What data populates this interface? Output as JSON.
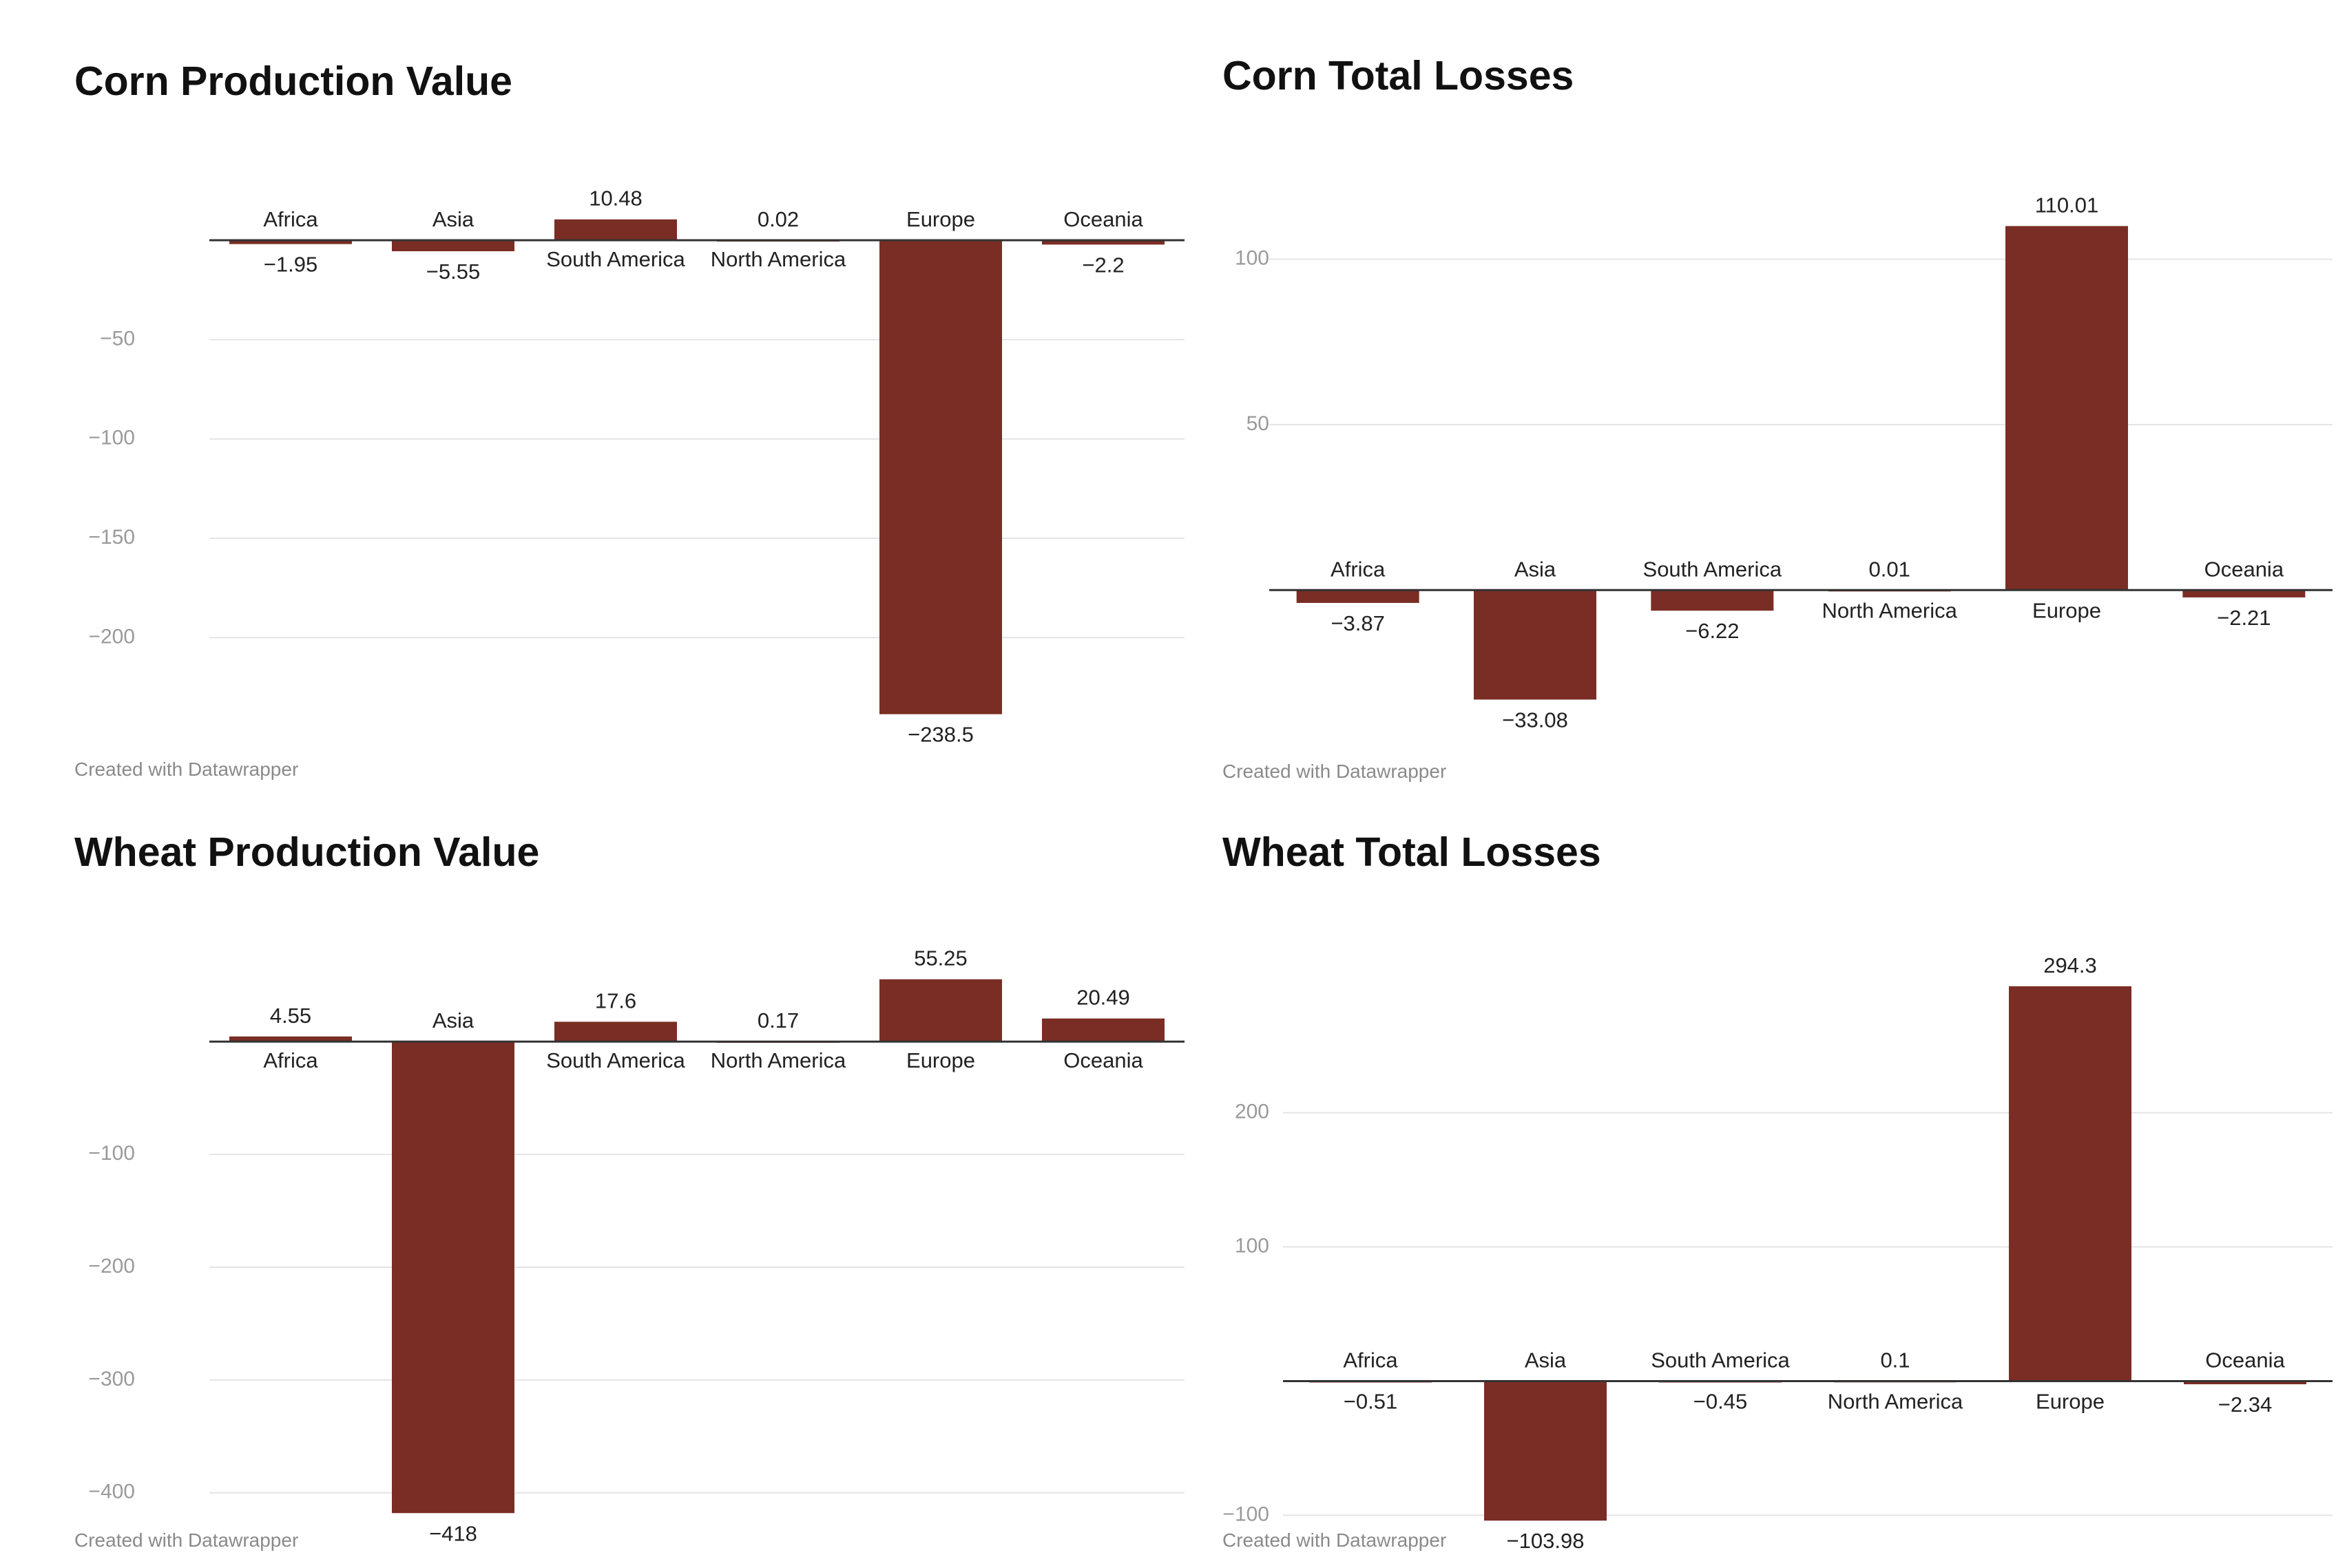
{
  "footer_text": "Created with Datawrapper",
  "colors": {
    "bar": "#7a2d24",
    "grid": "#e4e4e4",
    "axis": "#333333"
  },
  "chart_data": [
    {
      "type": "bar",
      "title": "Corn Production Value",
      "xlabel": "",
      "ylabel": "",
      "categories": [
        "Africa",
        "Asia",
        "South America",
        "North America",
        "Europe",
        "Oceania"
      ],
      "values": [
        -1.95,
        -5.55,
        10.48,
        0.02,
        -238.5,
        -2.2
      ],
      "value_labels": [
        "−1.95",
        "−5.55",
        "10.48",
        "0.02",
        "−238.5",
        "−2.2"
      ],
      "ticks": [
        -50,
        -100,
        -150,
        -200
      ],
      "tick_labels": [
        "−50",
        "−100",
        "−150",
        "−200"
      ],
      "ylim": [
        -248,
        13.5
      ],
      "grid": true
    },
    {
      "type": "bar",
      "title": "Corn Total Losses",
      "xlabel": "",
      "ylabel": "",
      "categories": [
        "Africa",
        "Asia",
        "South America",
        "North America",
        "Europe",
        "Oceania"
      ],
      "values": [
        -3.87,
        -33.08,
        -6.22,
        0.01,
        110.01,
        -2.21
      ],
      "value_labels": [
        "−3.87",
        "−33.08",
        "−6.22",
        "0.01",
        "110.01",
        "−2.21"
      ],
      "ticks": [
        100,
        50
      ],
      "tick_labels": [
        "100",
        "50"
      ],
      "ylim": [
        -38,
        118
      ],
      "grid": true
    },
    {
      "type": "bar",
      "title": "Wheat Production Value",
      "xlabel": "",
      "ylabel": "",
      "categories": [
        "Africa",
        "Asia",
        "South America",
        "North America",
        "Europe",
        "Oceania"
      ],
      "values": [
        4.55,
        -418,
        17.6,
        0.17,
        55.25,
        20.49
      ],
      "value_labels": [
        "4.55",
        "−418",
        "17.6",
        "0.17",
        "55.25",
        "20.49"
      ],
      "ticks": [
        -100,
        -200,
        -300,
        -400
      ],
      "tick_labels": [
        "−100",
        "−200",
        "−300",
        "−400"
      ],
      "ylim": [
        -427,
        63
      ],
      "grid": true
    },
    {
      "type": "bar",
      "title": "Wheat Total Losses",
      "xlabel": "",
      "ylabel": "",
      "categories": [
        "Africa",
        "Asia",
        "South America",
        "North America",
        "Europe",
        "Oceania"
      ],
      "values": [
        -0.51,
        -103.98,
        -0.45,
        0.1,
        294.3,
        -2.34
      ],
      "value_labels": [
        "−0.51",
        "−103.98",
        "−0.45",
        "0.1",
        "294.3",
        "−2.34"
      ],
      "ticks": [
        200,
        100,
        -100
      ],
      "tick_labels": [
        "200",
        "100",
        "−100"
      ],
      "ylim": [
        -108,
        306
      ],
      "grid": true
    }
  ]
}
